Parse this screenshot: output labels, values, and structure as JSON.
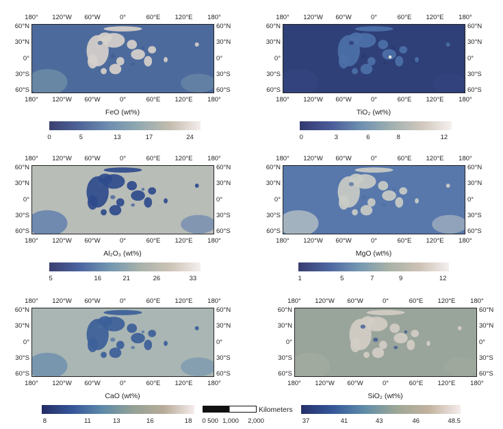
{
  "axes": {
    "lon_labels": [
      "180°",
      "120°W",
      "60°W",
      "0°",
      "60°E",
      "120°E",
      "180°"
    ],
    "lat_labels": [
      "60°N",
      "30°N",
      "0°",
      "30°S",
      "60°S"
    ]
  },
  "panels": [
    {
      "id": "feo",
      "title": "FeO (wt%)",
      "ticks": [
        "0",
        "5",
        "13",
        "17",
        "24"
      ],
      "colors": [
        "#3b4070",
        "#4f6499",
        "#6f8fb0",
        "#93aab0",
        "#c4bcae",
        "#f4eded"
      ]
    },
    {
      "id": "tio2",
      "title": "TiO₂ (wt%)",
      "ticks": [
        "0",
        "3",
        "6",
        "8",
        "12"
      ],
      "colors": [
        "#33396e",
        "#4a5a98",
        "#6d8fb0",
        "#9fb0b0",
        "#cfc7bc",
        "#f6f0f0"
      ]
    },
    {
      "id": "al2o3",
      "title": "Al₂O₃ (wt%)",
      "ticks": [
        "5",
        "16",
        "21",
        "26",
        "33"
      ],
      "colors": [
        "#3a3f70",
        "#4c64a0",
        "#7296b0",
        "#a8b2aa",
        "#cdc3b6",
        "#f4eeee"
      ]
    },
    {
      "id": "mgo",
      "title": "MgO (wt%)",
      "ticks": [
        "1",
        "5",
        "7",
        "9",
        "12"
      ],
      "colors": [
        "#383d70",
        "#4d65a0",
        "#7497b2",
        "#a7b1a6",
        "#cdc1b4",
        "#f4eeee"
      ]
    },
    {
      "id": "cao",
      "title": "CaO (wt%)",
      "ticks": [
        "8",
        "11",
        "13",
        "16",
        "18"
      ],
      "colors": [
        "#232c64",
        "#36569a",
        "#5e8aa8",
        "#94a196",
        "#b7ab98",
        "#f5ecec"
      ]
    },
    {
      "id": "sio2",
      "title": "SiO₂ (wt%)",
      "ticks": [
        "37",
        "41",
        "43",
        "46",
        "48.5"
      ],
      "colors": [
        "#26306a",
        "#35589a",
        "#5f8ca8",
        "#9da796",
        "#c2b29e",
        "#f5ecec"
      ]
    }
  ],
  "scale_bar": {
    "unit": "Kilometers",
    "ticks": [
      "0",
      "500",
      "1,000",
      "2,000"
    ]
  }
}
